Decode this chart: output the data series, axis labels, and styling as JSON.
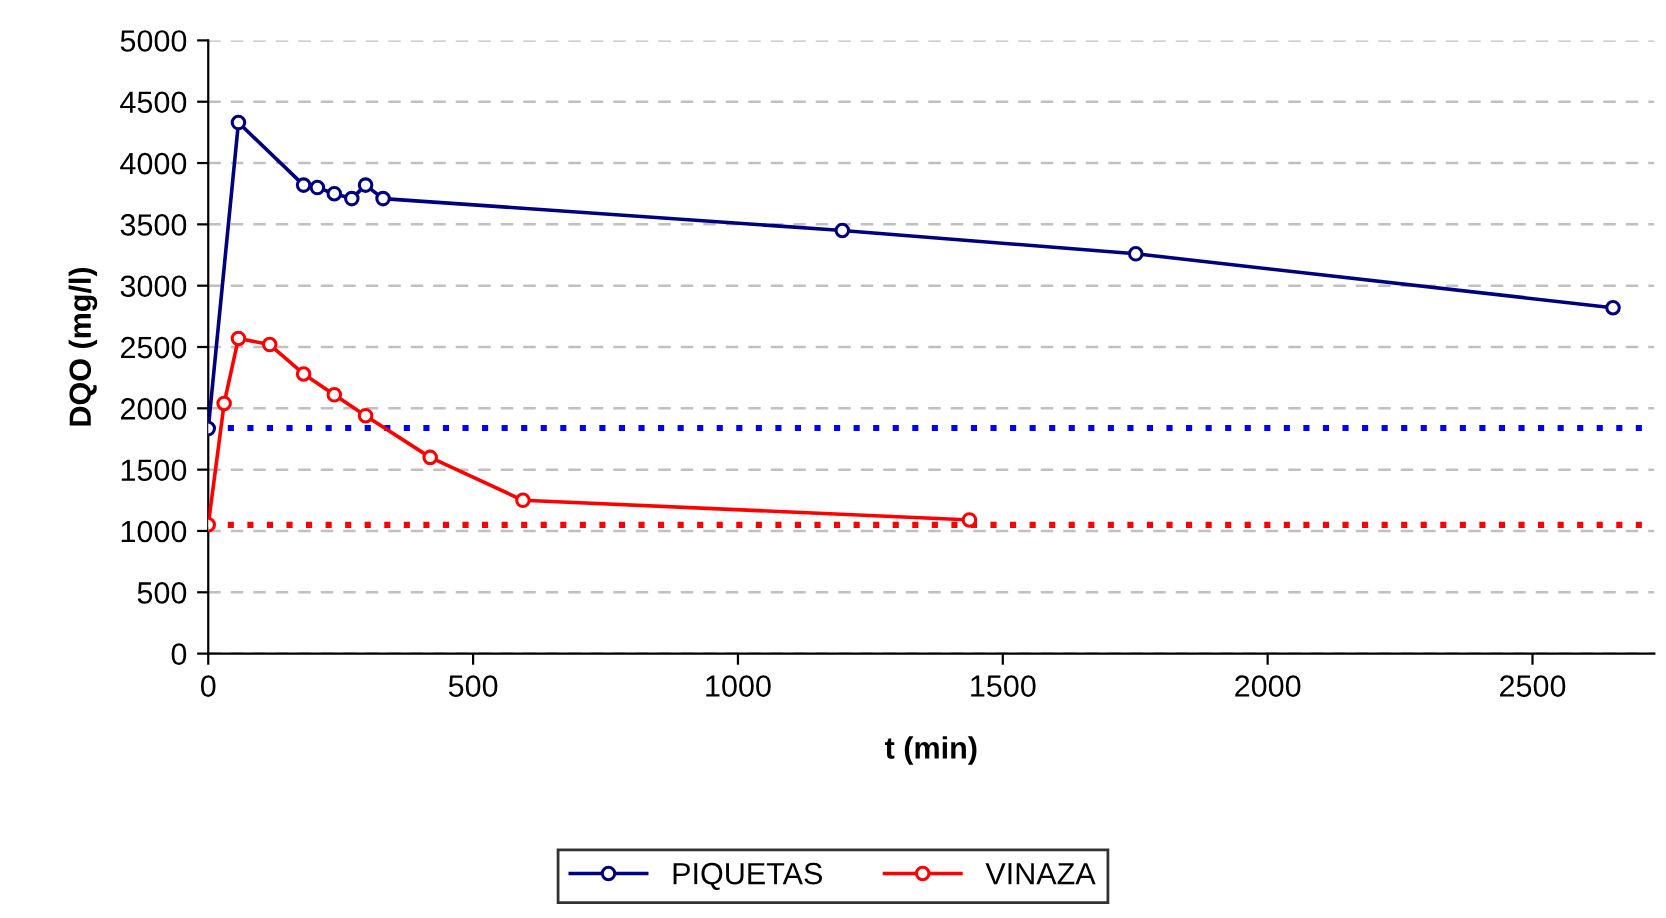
{
  "chart_data": {
    "type": "line",
    "xlabel": "t (min)",
    "ylabel": "DQO (mg/l)",
    "xlim": [
      0,
      2730
    ],
    "xticks": [
      0,
      500,
      1000,
      1500,
      2000,
      2500
    ],
    "ylim": [
      0,
      5000
    ],
    "yticks": [
      0,
      500,
      1000,
      1500,
      2000,
      2500,
      3000,
      3500,
      4000,
      4500,
      5000
    ],
    "grid": "y",
    "legend": "bottom",
    "marker": "circle",
    "line_style": "solid",
    "series": [
      {
        "name": "PIQUETAS",
        "color": "#000080",
        "x": [
          0,
          57,
          180,
          206,
          238,
          271,
          297,
          330,
          1197,
          1751,
          2652
        ],
        "values": [
          1835,
          4330,
          3820,
          3800,
          3750,
          3710,
          3820,
          3710,
          3450,
          3260,
          2820
        ]
      },
      {
        "name": "VINAZA",
        "color": "#ff0000",
        "x": [
          0,
          30,
          57,
          116,
          180,
          238,
          297,
          419,
          594,
          1437
        ],
        "values": [
          1050,
          2040,
          2570,
          2520,
          2280,
          2110,
          1940,
          1600,
          1250,
          1090
        ]
      }
    ],
    "ref_lines": [
      {
        "axis": "y",
        "value": 1840,
        "color": "#0000ff",
        "line_style": "dotted"
      },
      {
        "axis": "y",
        "value": 1050,
        "color": "#ff0000",
        "line_style": "dotted"
      }
    ]
  }
}
